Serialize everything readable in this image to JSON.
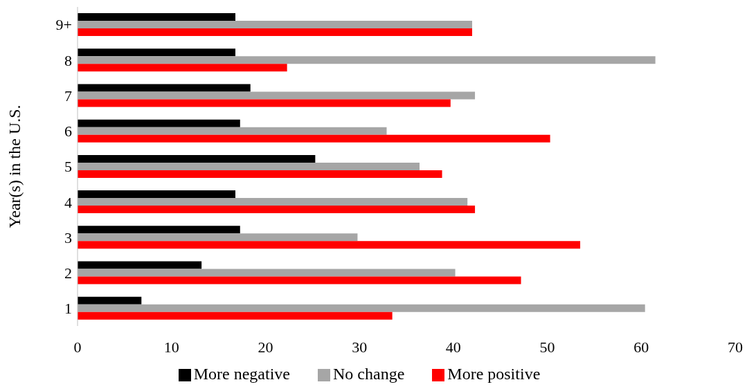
{
  "chart_data": {
    "type": "bar",
    "orientation": "horizontal",
    "ylabel": "Year(s) in the U.S.",
    "categories": [
      "9+",
      "8",
      "7",
      "6",
      "5",
      "4",
      "3",
      "2",
      "1"
    ],
    "series": [
      {
        "name": "More negative",
        "color": "#000000",
        "values": [
          16.8,
          16.8,
          18.4,
          17.3,
          25.3,
          16.8,
          17.3,
          13.2,
          6.8
        ]
      },
      {
        "name": "No change",
        "color": "#a6a6a6",
        "values": [
          42.0,
          61.5,
          42.3,
          32.9,
          36.4,
          41.5,
          29.8,
          40.2,
          60.4
        ]
      },
      {
        "name": "More positive",
        "color": "#ff0000",
        "values": [
          42.0,
          22.3,
          39.7,
          50.3,
          38.8,
          42.3,
          53.5,
          47.2,
          33.5
        ]
      }
    ],
    "xlim": [
      0,
      70
    ],
    "xticks": [
      0,
      10,
      20,
      30,
      40,
      50,
      60,
      70
    ],
    "grid": false,
    "legend": "bottom"
  }
}
